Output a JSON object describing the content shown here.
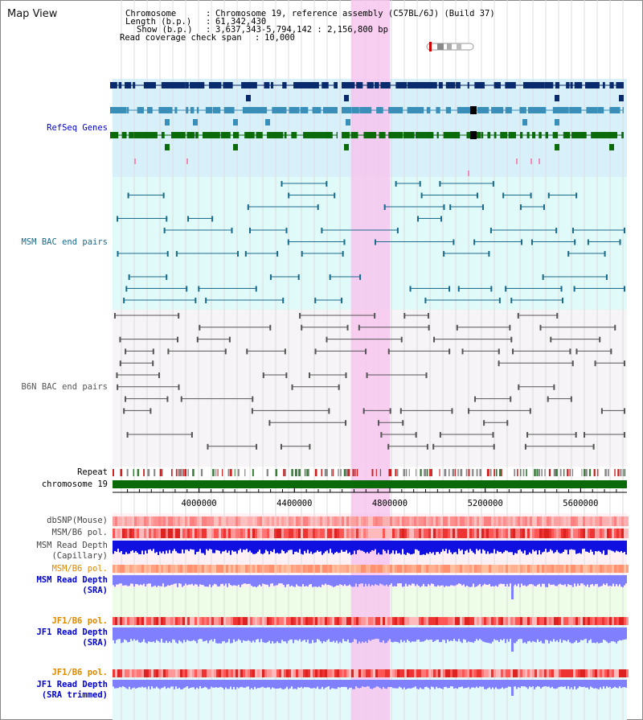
{
  "page": {
    "title": "Map View"
  },
  "info": {
    "chromosome_label": "Chromosome",
    "chromosome_value": "Chromosome 19, reference assembly (C57BL/6J) (Build 37)",
    "length_label": "Length (b.p.)",
    "length_value": "61,342,430",
    "show_label": "Show (b.p.)",
    "show_value": "3,637,343-5,794,142 : 2,156,800 bp",
    "coverage_label": "Read coverage check span",
    "coverage_value": "10,000"
  },
  "tracks": {
    "refseq": "RefSeq Genes",
    "msm_bac": "MSM BAC end pairs",
    "b6n_bac": "B6N BAC end pairs",
    "repeat": "Repeat",
    "chromosome": "chromosome 19",
    "dbsnp": "dbSNP(Mouse)",
    "msm_pol": "MSM/B6 pol.",
    "msm_depth_cap_1": "MSM Read Depth",
    "msm_depth_cap_2": "(Capillary)",
    "msm_pol_2": "MSM/B6 pol.",
    "msm_depth_sra_1": "MSM Read Depth",
    "msm_depth_sra_2": "(SRA)",
    "jf1_pol": "JF1/B6 pol.",
    "jf1_depth_sra_1": "JF1 Read Depth",
    "jf1_depth_sra_2": "(SRA)",
    "jf1_pol_2": "JF1/B6 pol.",
    "jf1_depth_trim_1": "JF1 Read Depth",
    "jf1_depth_trim_2": "(SRA trimmed)"
  },
  "axis": {
    "ticks": [
      {
        "label": "4000000",
        "pos": 4000000
      },
      {
        "label": "4400000",
        "pos": 4400000
      },
      {
        "label": "4800000",
        "pos": 4800000
      },
      {
        "label": "5200000",
        "pos": 5200000
      },
      {
        "label": "5600000",
        "pos": 5600000
      }
    ],
    "view_start": 3637343,
    "view_end": 5794142,
    "highlight_start": 4637000,
    "highlight_end": 4800000
  },
  "colors": {
    "refseq_dark": "#0a2a6e",
    "refseq_mid": "#3a8fb8",
    "refseq_green": "#0b6b0b",
    "msm_pair": "#1a6a8a",
    "b6n_pair": "#555555",
    "highlight": "#f7c6ee",
    "chrom_green": "#0a6a0a",
    "depth_blue": "#1010e0",
    "depth_light": "#8080ff",
    "pol_red": "#ee3333",
    "orange_label": "#dd8800",
    "blue_label": "#0000cc"
  }
}
